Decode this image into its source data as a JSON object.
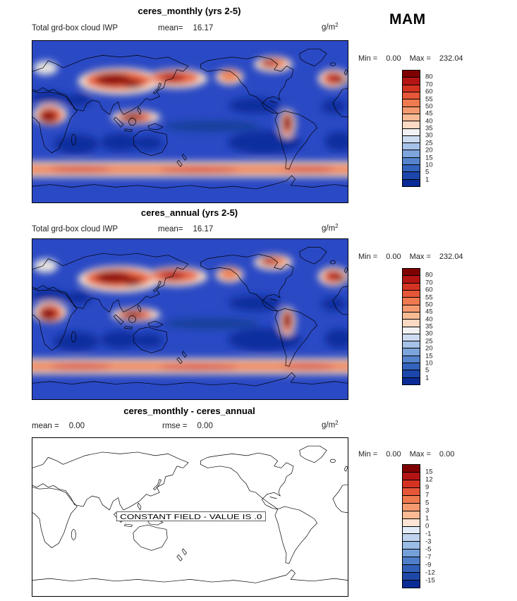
{
  "season": "MAM",
  "panels": [
    {
      "title": "ceres_monthly (yrs 2-5)",
      "var_label": "Total grd-box cloud IWP",
      "mean_label": "mean=",
      "mean_value": "16.17",
      "units_base": "g/m",
      "units_exp": "2",
      "min_label": "Min =",
      "min_value": "0.00",
      "max_label": "Max =",
      "max_value": "232.04"
    },
    {
      "title": "ceres_annual (yrs 2-5)",
      "var_label": "Total grd-box cloud IWP",
      "mean_label": "mean=",
      "mean_value": "16.17",
      "units_base": "g/m",
      "units_exp": "2",
      "min_label": "Min =",
      "min_value": "0.00",
      "max_label": "Max =",
      "max_value": "232.04"
    },
    {
      "title": "ceres_monthly - ceres_annual",
      "mean_label": "mean =",
      "mean_value": "0.00",
      "rmse_label": "rmse =",
      "rmse_value": "0.00",
      "units_base": "g/m",
      "units_exp": "2",
      "min_label": "Min =",
      "min_value": "0.00",
      "max_label": "Max =",
      "max_value": "0.00",
      "constant_note": "CONSTANT FIELD - VALUE IS .0"
    }
  ],
  "colorbars": {
    "iwp": {
      "ticks": [
        "80",
        "70",
        "60",
        "55",
        "50",
        "45",
        "40",
        "35",
        "30",
        "25",
        "20",
        "15",
        "10",
        "5",
        "1"
      ],
      "colors": [
        "#7f0000",
        "#b41414",
        "#d53322",
        "#e65638",
        "#ef7a50",
        "#f59a70",
        "#f9ba94",
        "#fcd9c2",
        "#f1f0f2",
        "#cddbf0",
        "#a6c2e8",
        "#7da4db",
        "#5584cd",
        "#3363bd",
        "#1c46ab",
        "#0b2c96"
      ]
    },
    "diff": {
      "ticks": [
        "15",
        "12",
        "9",
        "7",
        "5",
        "3",
        "1",
        "0",
        "-1",
        "-3",
        "-5",
        "-7",
        "-9",
        "-12",
        "-15"
      ],
      "colors": [
        "#7f0000",
        "#b41414",
        "#d53322",
        "#e65638",
        "#ef7a50",
        "#f59a70",
        "#f9ba94",
        "#fde4d4",
        "#e3ecf8",
        "#bfd2ee",
        "#9abce5",
        "#74a0d8",
        "#4f7fc9",
        "#3260b8",
        "#1f47a8",
        "#0b2c96"
      ]
    }
  },
  "chart_data": [
    {
      "type": "heatmap",
      "title": "ceres_monthly (yrs 2-5)",
      "variable": "Total grd-box cloud IWP",
      "season": "MAM",
      "units": "g/m^2",
      "mean": 16.17,
      "min": 0.0,
      "max": 232.04,
      "colorbar_levels": [
        1,
        5,
        10,
        15,
        20,
        25,
        30,
        35,
        40,
        45,
        50,
        55,
        60,
        70,
        80
      ],
      "colorbar_position": "right",
      "lon_range": [
        0,
        360
      ],
      "lat_range": [
        -90,
        90
      ],
      "description": "Global lat-lon map of cloud ice water path; high values (red, >60 g/m^2) over tropical Africa, South Asia/China, the maritime continent, Amazonia, N Pacific and N Atlantic storm tracks and the Southern Ocean band near 50-60S; low values (dark blue, <5 g/m^2) over subtropical oceans and deserts."
    },
    {
      "type": "heatmap",
      "title": "ceres_annual (yrs 2-5)",
      "variable": "Total grd-box cloud IWP",
      "season": "MAM",
      "units": "g/m^2",
      "mean": 16.17,
      "min": 0.0,
      "max": 232.04,
      "colorbar_levels": [
        1,
        5,
        10,
        15,
        20,
        25,
        30,
        35,
        40,
        45,
        50,
        55,
        60,
        70,
        80
      ],
      "colorbar_position": "right",
      "lon_range": [
        0,
        360
      ],
      "lat_range": [
        -90,
        90
      ],
      "description": "Identical spatial pattern to the ceres_monthly panel (same field, mean 16.17 g/m^2)."
    },
    {
      "type": "heatmap",
      "title": "ceres_monthly - ceres_annual",
      "season": "MAM",
      "units": "g/m^2",
      "mean": 0.0,
      "rmse": 0.0,
      "min": 0.0,
      "max": 0.0,
      "colorbar_levels": [
        -15,
        -12,
        -9,
        -7,
        -5,
        -3,
        -1,
        0,
        1,
        3,
        5,
        7,
        9,
        12,
        15
      ],
      "colorbar_position": "right",
      "lon_range": [
        0,
        360
      ],
      "lat_range": [
        -90,
        90
      ],
      "note": "CONSTANT FIELD - VALUE IS .0",
      "description": "Difference map is uniformly zero; only coastlines drawn on a white background."
    }
  ]
}
